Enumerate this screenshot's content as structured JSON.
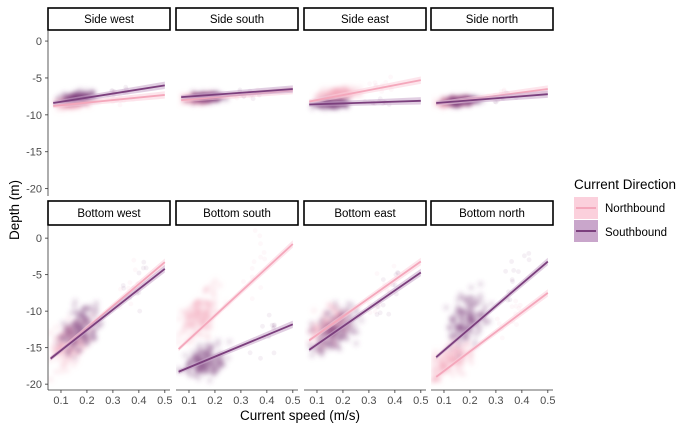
{
  "chart_data": {
    "type": "scatter",
    "xlabel": "Current speed (m/s)",
    "ylabel": "Depth (m)",
    "xlim": [
      0.05,
      0.52
    ],
    "x_ticks": [
      0.1,
      0.2,
      0.3,
      0.4,
      0.5
    ],
    "legend": {
      "title": "Current Direction",
      "position": "right",
      "entries": [
        {
          "name": "Northbound",
          "color": "#f4a7bb",
          "fill": "#fbd0dc"
        },
        {
          "name": "Southbound",
          "color": "#7b3f7d",
          "fill": "#c9a6cb"
        }
      ]
    },
    "rows": [
      {
        "name": "Side",
        "ylim": [
          -21,
          1.5
        ],
        "y_ticks": [
          0,
          -5,
          -10,
          -15,
          -20
        ]
      },
      {
        "name": "Bottom",
        "ylim": [
          -20.8,
          1.8
        ],
        "y_ticks": [
          0,
          -5,
          -10,
          -15,
          -20
        ]
      }
    ],
    "panels": [
      {
        "row": 0,
        "col": 0,
        "title": "Side west",
        "northbound": {
          "line": [
            [
              0.07,
              -8.8
            ],
            [
              0.5,
              -7.3
            ]
          ],
          "cloud": {
            "x": [
              0.06,
              0.28
            ],
            "y": [
              -9.3,
              -6.8
            ],
            "cx": 0.14,
            "cy": -8.4
          }
        },
        "southbound": {
          "line": [
            [
              0.07,
              -8.4
            ],
            [
              0.5,
              -6.0
            ]
          ],
          "cloud": {
            "x": [
              0.06,
              0.28
            ],
            "y": [
              -9.0,
              -6.3
            ],
            "cx": 0.16,
            "cy": -7.6
          }
        }
      },
      {
        "row": 0,
        "col": 1,
        "title": "Side south",
        "northbound": {
          "line": [
            [
              0.07,
              -8.0
            ],
            [
              0.5,
              -6.7
            ]
          ],
          "cloud": {
            "x": [
              0.06,
              0.27
            ],
            "y": [
              -8.8,
              -6.8
            ],
            "cx": 0.14,
            "cy": -7.8
          }
        },
        "southbound": {
          "line": [
            [
              0.07,
              -7.6
            ],
            [
              0.5,
              -6.5
            ]
          ],
          "cloud": {
            "x": [
              0.06,
              0.28
            ],
            "y": [
              -8.7,
              -6.6
            ],
            "cx": 0.17,
            "cy": -7.6
          }
        }
      },
      {
        "row": 0,
        "col": 2,
        "title": "Side east",
        "northbound": {
          "line": [
            [
              0.07,
              -8.2
            ],
            [
              0.5,
              -5.3
            ]
          ],
          "cloud": {
            "x": [
              0.07,
              0.3
            ],
            "y": [
              -8.8,
              -5.8
            ],
            "cx": 0.18,
            "cy": -7.2
          }
        },
        "southbound": {
          "line": [
            [
              0.07,
              -8.6
            ],
            [
              0.5,
              -8.1
            ]
          ],
          "cloud": {
            "x": [
              0.06,
              0.28
            ],
            "y": [
              -9.4,
              -7.6
            ],
            "cx": 0.16,
            "cy": -8.5
          }
        }
      },
      {
        "row": 0,
        "col": 3,
        "title": "Side north",
        "northbound": {
          "line": [
            [
              0.07,
              -8.5
            ],
            [
              0.5,
              -6.5
            ]
          ],
          "cloud": {
            "x": [
              0.06,
              0.27
            ],
            "y": [
              -9.2,
              -7.3
            ],
            "cx": 0.14,
            "cy": -8.2
          }
        },
        "southbound": {
          "line": [
            [
              0.07,
              -8.4
            ],
            [
              0.5,
              -7.2
            ]
          ],
          "cloud": {
            "x": [
              0.06,
              0.28
            ],
            "y": [
              -9.0,
              -7.0
            ],
            "cx": 0.17,
            "cy": -8.1
          }
        }
      },
      {
        "row": 1,
        "col": 0,
        "title": "Bottom west",
        "northbound": {
          "line": [
            [
              0.06,
              -16.5
            ],
            [
              0.5,
              -3.3
            ]
          ],
          "cloud": {
            "x": [
              0.06,
              0.32
            ],
            "y": [
              -19.5,
              -8.5
            ],
            "cx": 0.13,
            "cy": -14.5
          }
        },
        "southbound": {
          "line": [
            [
              0.06,
              -16.5
            ],
            [
              0.5,
              -4.2
            ]
          ],
          "cloud": {
            "x": [
              0.06,
              0.33
            ],
            "y": [
              -19.5,
              -7.5
            ],
            "cx": 0.17,
            "cy": -12.5
          }
        }
      },
      {
        "row": 1,
        "col": 1,
        "title": "Bottom south",
        "northbound": {
          "line": [
            [
              0.06,
              -15.2
            ],
            [
              0.5,
              -0.8
            ]
          ],
          "cloud": {
            "x": [
              0.06,
              0.3
            ],
            "y": [
              -16.0,
              -5.0
            ],
            "cx": 0.14,
            "cy": -10.5
          }
        },
        "southbound": {
          "line": [
            [
              0.06,
              -18.3
            ],
            [
              0.5,
              -11.8
            ]
          ],
          "cloud": {
            "x": [
              0.06,
              0.33
            ],
            "y": [
              -20.0,
              -12.0
            ],
            "cx": 0.16,
            "cy": -17.0
          }
        }
      },
      {
        "row": 1,
        "col": 2,
        "title": "Bottom east",
        "northbound": {
          "line": [
            [
              0.07,
              -14.0
            ],
            [
              0.5,
              -3.2
            ]
          ],
          "cloud": {
            "x": [
              0.07,
              0.3
            ],
            "y": [
              -17.0,
              -8.0
            ],
            "cx": 0.15,
            "cy": -12.0
          }
        },
        "southbound": {
          "line": [
            [
              0.07,
              -15.3
            ],
            [
              0.5,
              -4.7
            ]
          ],
          "cloud": {
            "x": [
              0.06,
              0.33
            ],
            "y": [
              -18.0,
              -7.0
            ],
            "cx": 0.17,
            "cy": -12.5
          }
        }
      },
      {
        "row": 1,
        "col": 3,
        "title": "Bottom north",
        "northbound": {
          "line": [
            [
              0.07,
              -19.0
            ],
            [
              0.5,
              -7.5
            ]
          ],
          "cloud": {
            "x": [
              0.06,
              0.3
            ],
            "y": [
              -19.5,
              -11.0
            ],
            "cx": 0.13,
            "cy": -16.5
          }
        },
        "southbound": {
          "line": [
            [
              0.07,
              -16.3
            ],
            [
              0.5,
              -3.2
            ]
          ],
          "cloud": {
            "x": [
              0.06,
              0.33
            ],
            "y": [
              -18.0,
              -5.0
            ],
            "cx": 0.18,
            "cy": -11.5
          }
        }
      }
    ]
  }
}
